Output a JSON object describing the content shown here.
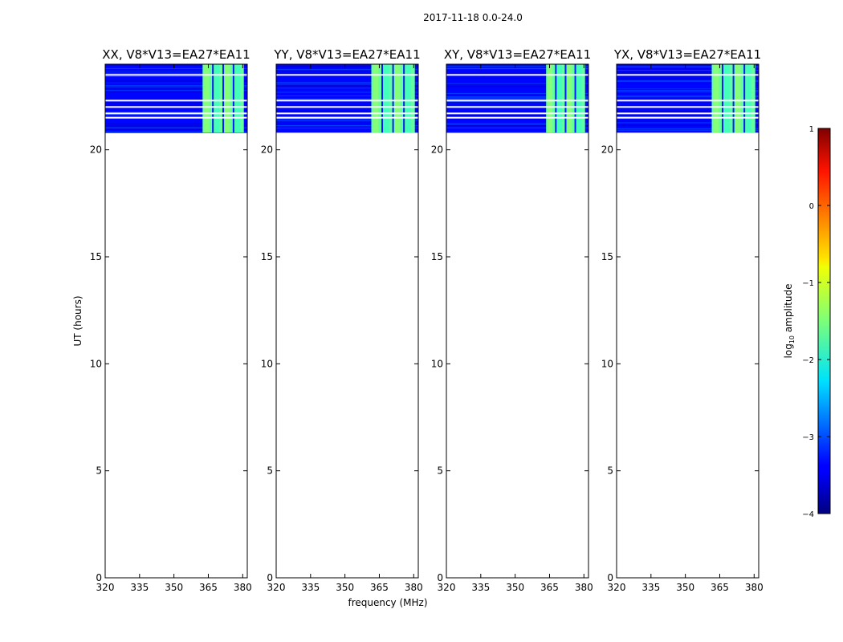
{
  "figure": {
    "suptitle": "2017-11-18 0.0-24.0",
    "xlabel": "frequency (MHz)",
    "ylabel": "UT (hours)"
  },
  "chart_data": {
    "type": "heatmap",
    "title": "2017-11-18 0.0-24.0",
    "xlabel": "frequency (MHz)",
    "ylabel": "UT (hours)",
    "xlim": [
      320,
      382
    ],
    "ylim": [
      0,
      24
    ],
    "xticks": [
      320,
      335,
      350,
      365,
      380
    ],
    "yticks": [
      0,
      5,
      10,
      15,
      20
    ],
    "data_time_range_hours": [
      20.8,
      24.0
    ],
    "bright_band_mhz": [
      362.5,
      381.0
    ],
    "blank_time_rows_hours": [
      21.5,
      21.7,
      22.0,
      22.3,
      23.5
    ],
    "panels": [
      {
        "title": "XX, V8*V13=EA27*EA11",
        "pol": "XX",
        "band_start_mhz": 362.5,
        "band_end_mhz": 380.5
      },
      {
        "title": "YY, V8*V13=EA27*EA11",
        "pol": "YY",
        "band_start_mhz": 361.5,
        "band_end_mhz": 380.5
      },
      {
        "title": "XY, V8*V13=EA27*EA11",
        "pol": "XY",
        "band_start_mhz": 363.5,
        "band_end_mhz": 380.5
      },
      {
        "title": "YX, V8*V13=EA27*EA11",
        "pol": "YX",
        "band_start_mhz": 361.5,
        "band_end_mhz": 380.5
      }
    ],
    "colorbar": {
      "label": "log10 amplitude",
      "label_main": "log",
      "label_sub": "10",
      "label_rest": " amplitude",
      "range": [
        -4,
        1
      ],
      "ticks": [
        1,
        0,
        -1,
        -2,
        -3,
        -4
      ],
      "tick_labels": [
        "1",
        "0",
        "−1",
        "−2",
        "−3",
        "−4"
      ],
      "colormap": "jet"
    }
  }
}
